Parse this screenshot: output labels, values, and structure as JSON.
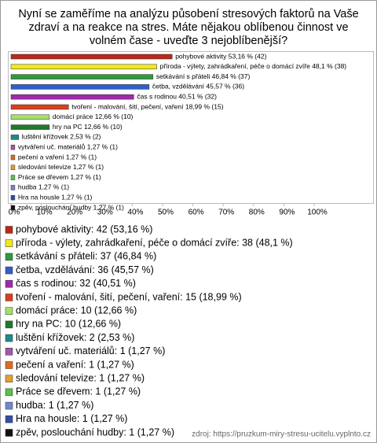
{
  "chart_data": {
    "type": "hbar",
    "title": [
      "Nyní se zaměříme na analýzu působení stresových faktorů na Vaše",
      "zdraví a na reakce na stres. Máte nějakou oblíbenou činnost ve",
      "volném čase - uveďte 3 nejoblíbenější?"
    ],
    "categories": [
      "pohybové aktivity",
      "příroda - výlety, zahrádkaření, péče o domácí zvíře",
      "setkávání s přáteli",
      "četba, vzdělávání",
      "čas s rodinou",
      "tvoření - malování, šití, pečení, vaření",
      "domácí práce",
      "hry na PC",
      "luštění křížovek",
      "vytváření uč. materiálů",
      "pečení a vaření",
      "sledování televize",
      "Práce se dřevem",
      "hudba",
      "Hra na housle",
      "zpěv, poslouchání hudby"
    ],
    "values": [
      53.16,
      48.1,
      46.84,
      45.57,
      40.51,
      18.99,
      12.66,
      12.66,
      2.53,
      1.27,
      1.27,
      1.27,
      1.27,
      1.27,
      1.27,
      1.27
    ],
    "value_labels": [
      "pohybové aktivity 53,16 % (42)",
      "příroda - výlety, zahrádkaření, péče o domácí zvíře 48,1 % (38)",
      "setkávání s přáteli 46,84 % (37)",
      "četba, vzdělávání 45,57 % (36)",
      "čas s rodinou 40,51 % (32)",
      "tvoření - malování, šití, pečení, vaření 18,99 % (15)",
      "domácí práce 12,66 % (10)",
      "hry na PC 12,66 % (10)",
      "luštění křížovek 2,53 % (2)",
      "vytváření uč. materiálů 1,27 % (1)",
      "pečení a vaření 1,27 % (1)",
      "sledování televize 1,27 % (1)",
      "Práce se dřevem 1,27 % (1)",
      "hudba 1,27 % (1)",
      "Hra na housle 1,27 % (1)",
      "zpěv, poslouchání hudby 1,27 % (1)"
    ],
    "legend_labels": [
      "pohybové aktivity: 42 (53,16 %)",
      "příroda - výlety, zahrádkaření, péče o domácí zvíře: 38 (48,1 %)",
      "setkávání s přáteli: 37 (46,84 %)",
      "četba, vzdělávání: 36 (45,57 %)",
      "čas s rodinou: 32 (40,51 %)",
      "tvoření - malování, šití, pečení, vaření: 15 (18,99 %)",
      "domácí práce: 10 (12,66 %)",
      "hry na PC: 10 (12,66 %)",
      "luštění křížovek: 2 (2,53 %)",
      "vytváření uč. materiálů: 1 (1,27 %)",
      "pečení a vaření: 1 (1,27 %)",
      "sledování televize: 1 (1,27 %)",
      "Práce se dřevem: 1 (1,27 %)",
      "hudba: 1 (1,27 %)",
      "Hra na housle: 1 (1,27 %)",
      "zpěv, poslouchání hudby: 1 (1,27 %)"
    ],
    "colors": [
      "#b8291a",
      "#f2e81c",
      "#2f9a3c",
      "#2f5fc8",
      "#a02aa8",
      "#d8401a",
      "#a6e06a",
      "#1f7a2a",
      "#1f8a8a",
      "#a058a8",
      "#e06a20",
      "#e0a030",
      "#5cc04a",
      "#6f86d0",
      "#2f4fa8",
      "#111111"
    ],
    "xlim": [
      0,
      100
    ],
    "xticks": [
      {
        "value": 0,
        "label": "0%"
      },
      {
        "value": 10,
        "label": "10%"
      },
      {
        "value": 20,
        "label": "20%"
      },
      {
        "value": 30,
        "label": "30%"
      },
      {
        "value": 40,
        "label": "40%"
      },
      {
        "value": 50,
        "label": "50%"
      },
      {
        "value": 60,
        "label": "60%"
      },
      {
        "value": 70,
        "label": "70%"
      },
      {
        "value": 80,
        "label": "80%"
      },
      {
        "value": 90,
        "label": "90%"
      },
      {
        "value": 100,
        "label": "100%"
      }
    ],
    "source": "zdroj: https://pruzkum-miry-stresu-ucitelu.vyplnto.cz"
  }
}
